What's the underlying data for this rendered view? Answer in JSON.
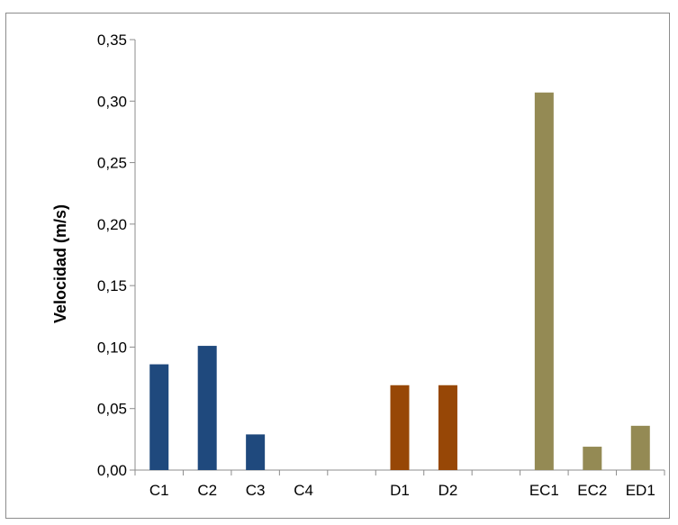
{
  "chart_data": {
    "type": "bar",
    "title": "",
    "xlabel": "",
    "ylabel": "Velocidad (m/s)",
    "ylim": [
      0,
      0.35
    ],
    "yticks": [
      "0,00",
      "0,05",
      "0,10",
      "0,15",
      "0,20",
      "0,25",
      "0,30",
      "0,35"
    ],
    "grid": false,
    "legend": "none",
    "categories": [
      "C1",
      "C2",
      "C3",
      "C4",
      "",
      "D1",
      "D2",
      "",
      "EC1",
      "EC2",
      "ED1"
    ],
    "values": [
      0.086,
      0.101,
      0.029,
      0.0,
      null,
      0.069,
      0.069,
      null,
      0.307,
      0.019,
      0.036
    ],
    "bar_colors": [
      "#1f497d",
      "#1f497d",
      "#1f497d",
      "#1f497d",
      null,
      "#974706",
      "#974706",
      null,
      "#948a54",
      "#948a54",
      "#948a54"
    ]
  }
}
